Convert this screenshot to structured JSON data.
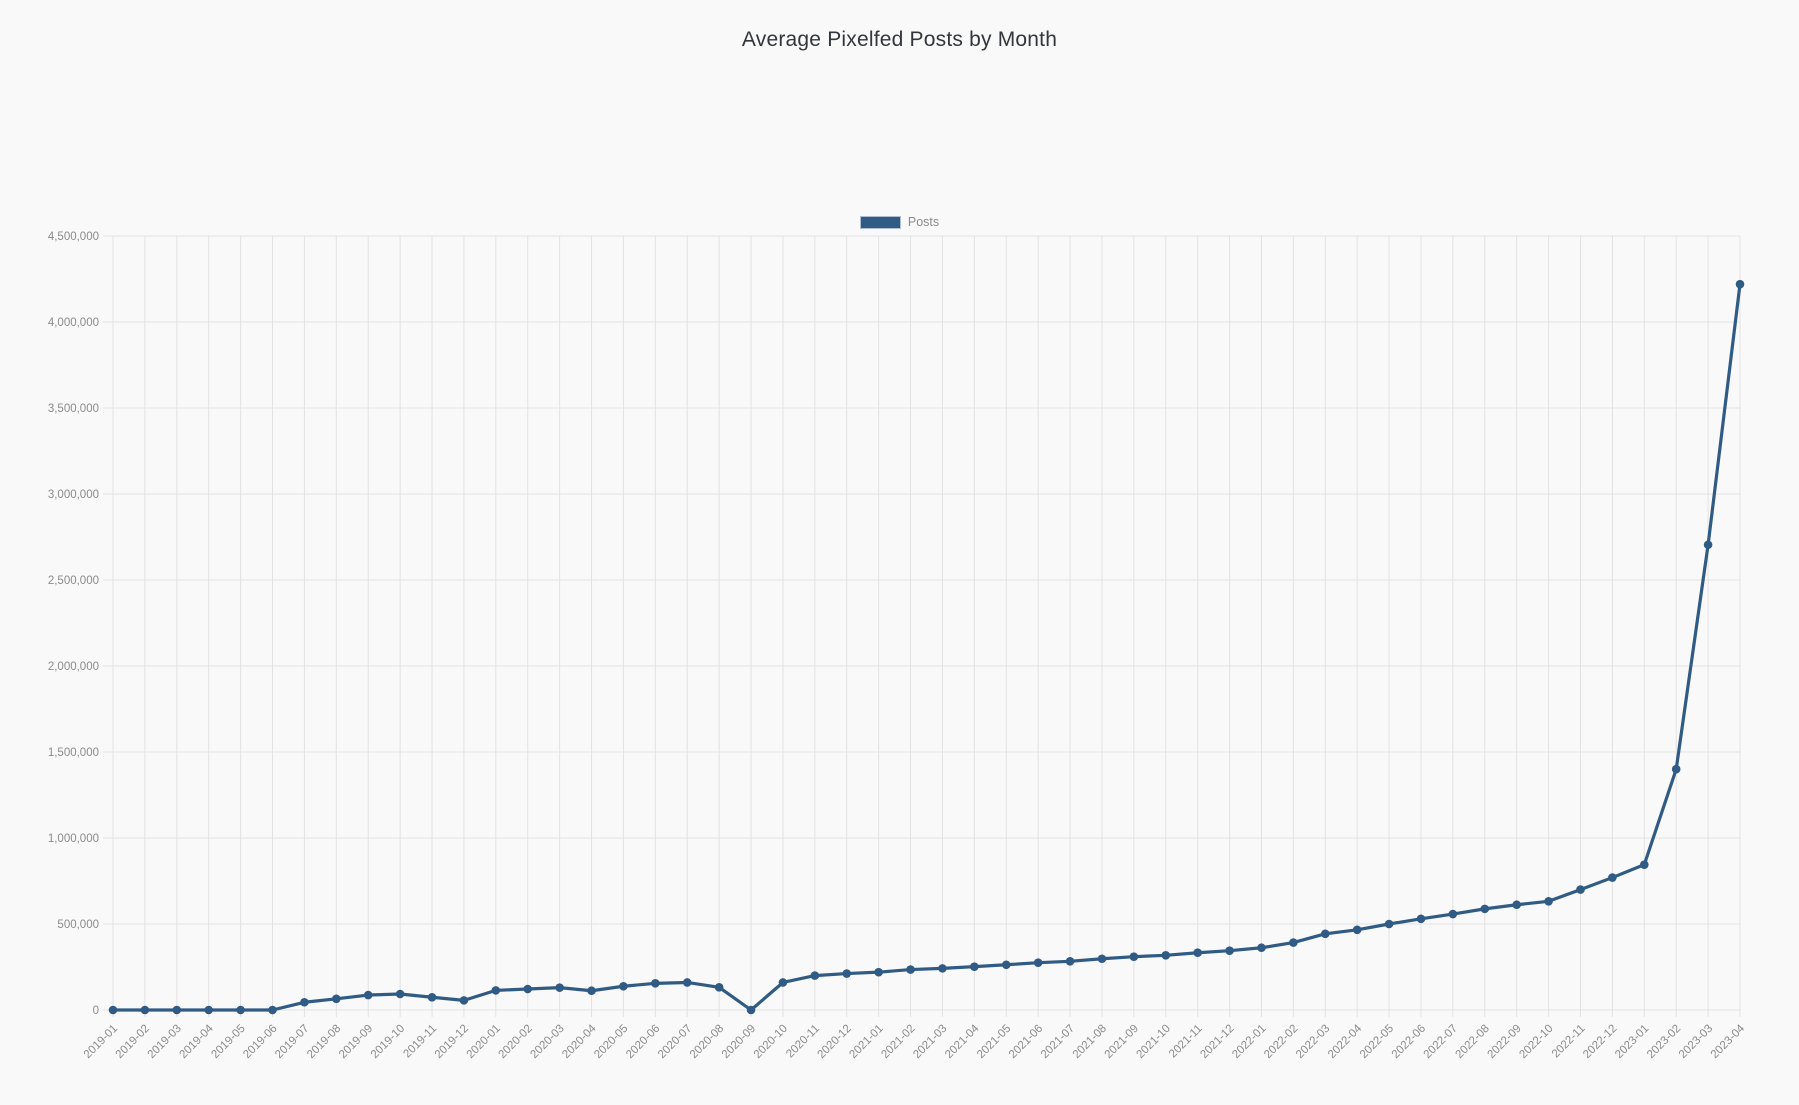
{
  "chart_data": {
    "type": "line",
    "title": "Average Pixelfed Posts by Month",
    "xlabel": "",
    "ylabel": "",
    "grid": true,
    "legend_position": "top-center",
    "ylim": [
      0,
      4500000
    ],
    "y_tick_step": 500000,
    "y_ticks": [
      0,
      500000,
      1000000,
      1500000,
      2000000,
      2500000,
      3000000,
      3500000,
      4000000,
      4500000
    ],
    "y_tick_labels": [
      "0",
      "500,000",
      "1,000,000",
      "1,500,000",
      "2,000,000",
      "2,500,000",
      "3,000,000",
      "3,500,000",
      "4,000,000",
      "4,500,000"
    ],
    "categories": [
      "2019-01",
      "2019-02",
      "2019-03",
      "2019-04",
      "2019-05",
      "2019-06",
      "2019-07",
      "2019-08",
      "2019-09",
      "2019-10",
      "2019-11",
      "2019-12",
      "2020-01",
      "2020-02",
      "2020-03",
      "2020-04",
      "2020-05",
      "2020-06",
      "2020-07",
      "2020-08",
      "2020-09",
      "2020-10",
      "2020-11",
      "2020-12",
      "2021-01",
      "2021-02",
      "2021-03",
      "2021-04",
      "2021-05",
      "2021-06",
      "2021-07",
      "2021-08",
      "2021-09",
      "2021-10",
      "2021-11",
      "2021-12",
      "2022-01",
      "2022-02",
      "2022-03",
      "2022-04",
      "2022-05",
      "2022-06",
      "2022-07",
      "2022-08",
      "2022-09",
      "2022-10",
      "2022-11",
      "2022-12",
      "2023-01",
      "2023-02",
      "2023-03",
      "2023-04"
    ],
    "series": [
      {
        "name": "Posts",
        "values": [
          0,
          0,
          0,
          0,
          0,
          0,
          45000,
          65000,
          87000,
          93000,
          74000,
          56000,
          114000,
          122000,
          130000,
          112000,
          138000,
          155000,
          160000,
          132000,
          0,
          160000,
          200000,
          212000,
          220000,
          235000,
          242000,
          252000,
          263000,
          275000,
          283000,
          298000,
          310000,
          318000,
          333000,
          345000,
          362000,
          392000,
          443000,
          466000,
          500000,
          530000,
          558000,
          588000,
          612000,
          632000,
          700000,
          770000,
          845000,
          1400000,
          2705000,
          4220000
        ]
      }
    ],
    "colors": {
      "line": "#2f5b85",
      "grid": "#e2e2e2",
      "axis_text": "#8b8b8b",
      "title_text": "#33373d",
      "legend_text": "#8b8b8b",
      "background": "#f9f9f9"
    }
  }
}
